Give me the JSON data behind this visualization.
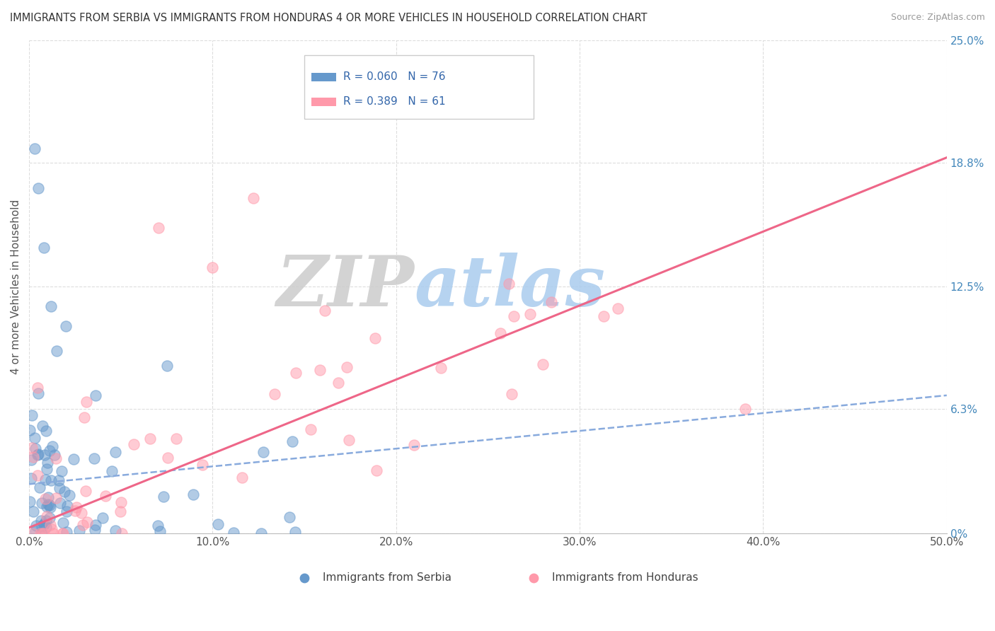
{
  "title": "IMMIGRANTS FROM SERBIA VS IMMIGRANTS FROM HONDURAS 4 OR MORE VEHICLES IN HOUSEHOLD CORRELATION CHART",
  "source": "Source: ZipAtlas.com",
  "ylabel": "4 or more Vehicles in Household",
  "xlim": [
    0.0,
    50.0
  ],
  "ylim": [
    0.0,
    25.0
  ],
  "xticks": [
    0.0,
    10.0,
    20.0,
    30.0,
    40.0,
    50.0
  ],
  "xtick_labels": [
    "0.0%",
    "10.0%",
    "20.0%",
    "30.0%",
    "40.0%",
    "50.0%"
  ],
  "yticks": [
    0.0,
    6.3,
    12.5,
    18.8,
    25.0
  ],
  "ytick_labels": [
    "0%",
    "6.3%",
    "12.5%",
    "18.8%",
    "25.0%"
  ],
  "serbia_color": "#6699cc",
  "honduras_color": "#ff99aa",
  "serbia_R": 0.06,
  "serbia_N": 76,
  "honduras_R": 0.389,
  "honduras_N": 61,
  "watermark_zip": "ZIP",
  "watermark_atlas": "atlas",
  "watermark_zip_color": "#cccccc",
  "watermark_atlas_color": "#aaccee",
  "legend_label1": "Immigrants from Serbia",
  "legend_label2": "Immigrants from Honduras",
  "serbia_line_color": "#88aadd",
  "honduras_line_color": "#ee6688",
  "serbia_line_style": "--",
  "honduras_line_style": "-",
  "serbia_line_intercept": 2.5,
  "serbia_line_slope": 0.09,
  "honduras_line_intercept": 0.3,
  "honduras_line_slope": 0.375
}
